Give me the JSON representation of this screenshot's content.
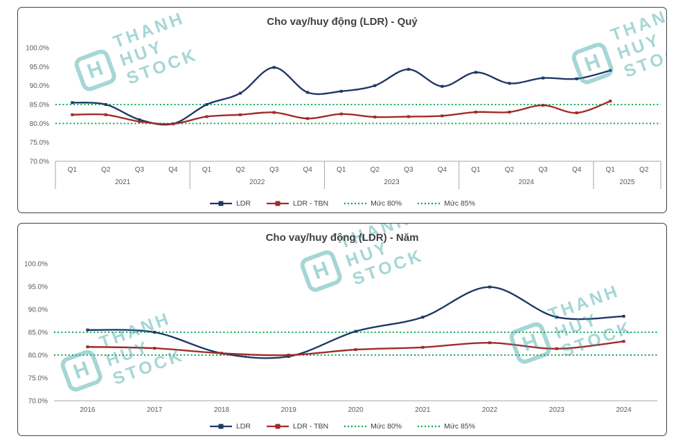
{
  "watermark": {
    "line1": "THANH",
    "line2": "HUY",
    "line3": "STOCK",
    "logo_letter": "H",
    "color": "#2E9E9E"
  },
  "chart_data": [
    {
      "type": "line",
      "title": "Cho vay/huy động (LDR) - Quý",
      "ylim": [
        70,
        100
      ],
      "grid": false,
      "legend_position": "bottom",
      "y_ticks": [
        {
          "label": "100.0%",
          "v": 100
        },
        {
          "label": "95.0%",
          "v": 95
        },
        {
          "label": "90.0%",
          "v": 90
        },
        {
          "label": "85.0%",
          "v": 85
        },
        {
          "label": "80.0%",
          "v": 80
        },
        {
          "label": "75.0%",
          "v": 75
        },
        {
          "label": "70.0%",
          "v": 70
        }
      ],
      "categories": [
        "Q1",
        "Q2",
        "Q3",
        "Q4",
        "Q1",
        "Q2",
        "Q3",
        "Q4",
        "Q1",
        "Q2",
        "Q3",
        "Q4",
        "Q1",
        "Q2",
        "Q3",
        "Q4",
        "Q1",
        "Q2"
      ],
      "groups": [
        {
          "label": "2021",
          "span": 4
        },
        {
          "label": "2022",
          "span": 4
        },
        {
          "label": "2023",
          "span": 4
        },
        {
          "label": "2024",
          "span": 4
        },
        {
          "label": "2025",
          "span": 2
        }
      ],
      "series": [
        {
          "name": "LDR",
          "color": "#1F3864",
          "values": [
            85.5,
            85.0,
            81.0,
            79.9,
            85.0,
            88.0,
            94.8,
            88.2,
            88.5,
            90.0,
            94.3,
            89.8,
            93.5,
            90.6,
            92.0,
            91.8,
            94.0,
            null
          ]
        },
        {
          "name": "LDR - TBN",
          "color": "#A02B2A",
          "values": [
            82.3,
            82.3,
            80.5,
            79.9,
            81.8,
            82.3,
            82.9,
            81.3,
            82.5,
            81.7,
            81.8,
            82.0,
            83.0,
            83.0,
            84.8,
            82.8,
            85.9,
            null
          ]
        },
        {
          "name": "Mức 80%",
          "color": "#00A651",
          "dotted": true,
          "constant": 80
        },
        {
          "name": "Mức 85%",
          "color": "#00A651",
          "dotted": true,
          "constant": 85
        }
      ]
    },
    {
      "type": "line",
      "title": "Cho vay/huy động (LDR) - Năm",
      "ylim": [
        70,
        100
      ],
      "grid": false,
      "legend_position": "bottom",
      "y_ticks": [
        {
          "label": "100.0%",
          "v": 100
        },
        {
          "label": "95.0%",
          "v": 95
        },
        {
          "label": "90.0%",
          "v": 90
        },
        {
          "label": "85.0%",
          "v": 85
        },
        {
          "label": "80.0%",
          "v": 80
        },
        {
          "label": "75.0%",
          "v": 75
        },
        {
          "label": "70.0%",
          "v": 70
        }
      ],
      "categories": [
        "2016",
        "2017",
        "2018",
        "2019",
        "2020",
        "2021",
        "2022",
        "2023",
        "2024"
      ],
      "series": [
        {
          "name": "LDR",
          "color": "#1F3864",
          "values": [
            85.5,
            85.0,
            80.4,
            79.7,
            85.2,
            88.3,
            94.9,
            88.3,
            88.5
          ]
        },
        {
          "name": "LDR - TBN",
          "color": "#A02B2A",
          "values": [
            81.8,
            81.5,
            80.4,
            80.0,
            81.2,
            81.7,
            82.7,
            81.4,
            83.0
          ]
        },
        {
          "name": "Mức 80%",
          "color": "#00A651",
          "dotted": true,
          "constant": 80
        },
        {
          "name": "Mức 85%",
          "color": "#00A651",
          "dotted": true,
          "constant": 85
        }
      ]
    }
  ]
}
